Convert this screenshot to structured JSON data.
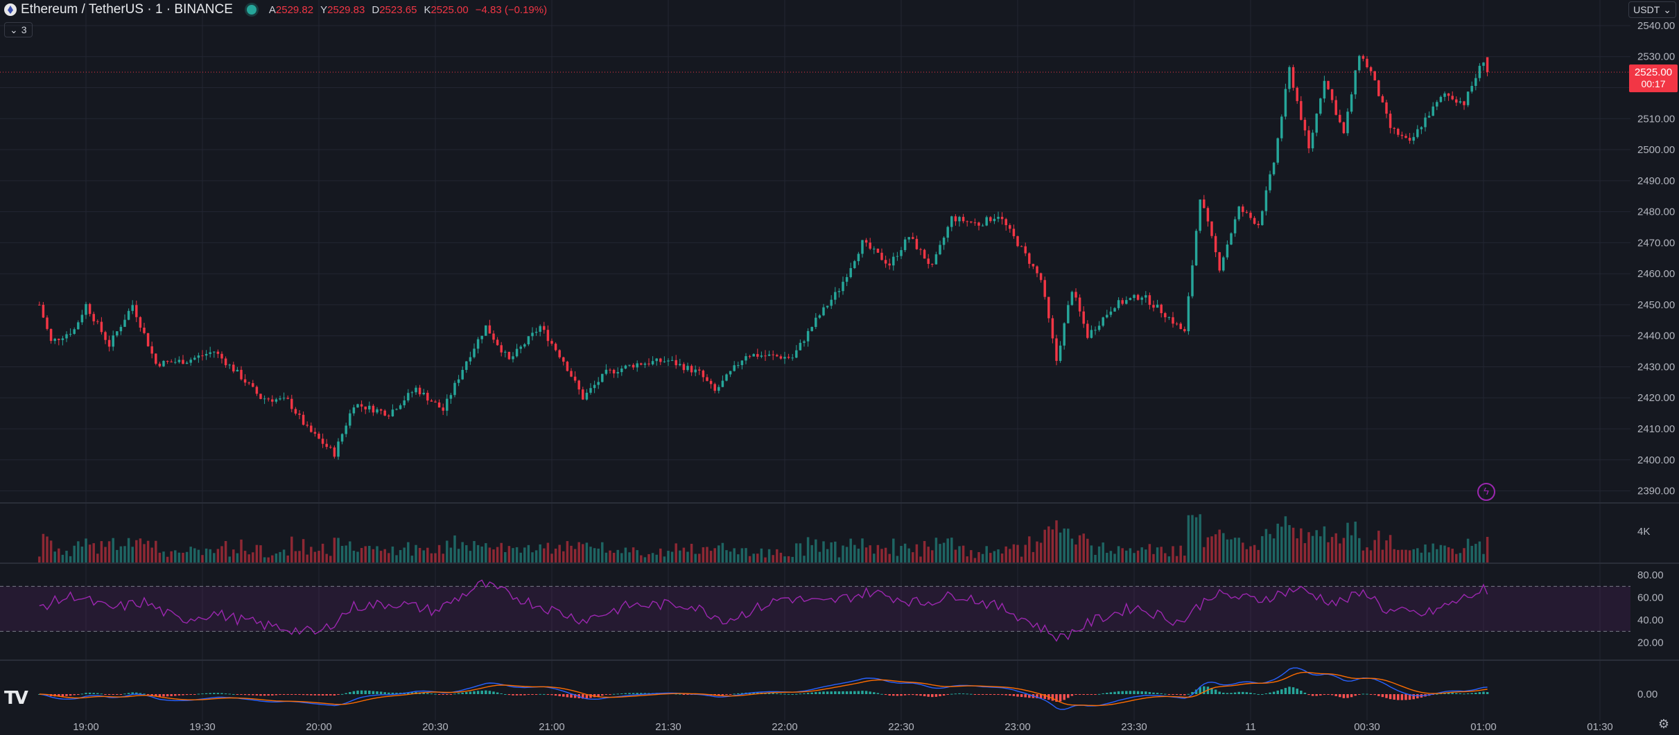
{
  "header": {
    "symbol_title": "Ethereum / TetherUS · 1 · BINANCE",
    "ohlc": [
      {
        "key": "A",
        "value": "2529.82"
      },
      {
        "key": "Y",
        "value": "2529.83"
      },
      {
        "key": "D",
        "value": "2523.65"
      },
      {
        "key": "K",
        "value": "2525.00"
      },
      {
        "key": "",
        "value": "−4.83 (−0.19%)"
      }
    ],
    "collapse_label": "3",
    "currency": "USDT"
  },
  "colors": {
    "background": "#151820",
    "up": "#26a69a",
    "down": "#f23645",
    "rsi": "#9c27b0",
    "macd": "#2962ff",
    "signal": "#ff6d00",
    "grid": "#232632",
    "text": "#b2b5be"
  },
  "price_tag": {
    "price": "2525.00",
    "countdown": "00:17"
  },
  "volume_axis_label": "4K",
  "icons": {
    "logo": "tradingview-logo-icon",
    "settings": "gear-icon",
    "flash": "lightning-icon"
  },
  "chart_data": {
    "type": "candlestick",
    "symbol": "Ethereum / TetherUS · 1 · BINANCE",
    "price_axis": {
      "ticks": [
        "2540.00",
        "2530.00",
        "2520.00",
        "2510.00",
        "2500.00",
        "2490.00",
        "2480.00",
        "2470.00",
        "2460.00",
        "2450.00",
        "2440.00",
        "2430.00",
        "2420.00",
        "2410.00",
        "2400.00",
        "2390.00"
      ],
      "range": [
        2387,
        2542
      ]
    },
    "time_axis": {
      "ticks": [
        "19:00",
        "19:30",
        "20:00",
        "20:30",
        "21:00",
        "21:30",
        "22:00",
        "22:30",
        "23:00",
        "23:30",
        "11",
        "00:30",
        "01:00",
        "01:30"
      ]
    },
    "close_path": [
      {
        "t": "18:48",
        "p": 2450
      },
      {
        "t": "18:51",
        "p": 2438
      },
      {
        "t": "18:57",
        "p": 2442
      },
      {
        "t": "19:00",
        "p": 2450
      },
      {
        "t": "19:06",
        "p": 2437
      },
      {
        "t": "19:12",
        "p": 2450
      },
      {
        "t": "19:18",
        "p": 2431
      },
      {
        "t": "19:26",
        "p": 2432
      },
      {
        "t": "19:33",
        "p": 2435
      },
      {
        "t": "19:39",
        "p": 2428
      },
      {
        "t": "19:45",
        "p": 2420
      },
      {
        "t": "19:52",
        "p": 2419
      },
      {
        "t": "19:57",
        "p": 2410
      },
      {
        "t": "20:04",
        "p": 2402
      },
      {
        "t": "20:09",
        "p": 2418
      },
      {
        "t": "20:18",
        "p": 2415
      },
      {
        "t": "20:25",
        "p": 2423
      },
      {
        "t": "20:32",
        "p": 2416
      },
      {
        "t": "20:38",
        "p": 2432
      },
      {
        "t": "20:43",
        "p": 2443
      },
      {
        "t": "20:49",
        "p": 2432
      },
      {
        "t": "20:57",
        "p": 2443
      },
      {
        "t": "21:03",
        "p": 2432
      },
      {
        "t": "21:08",
        "p": 2420
      },
      {
        "t": "21:14",
        "p": 2428
      },
      {
        "t": "21:22",
        "p": 2431
      },
      {
        "t": "21:30",
        "p": 2432
      },
      {
        "t": "21:38",
        "p": 2428
      },
      {
        "t": "21:42",
        "p": 2422
      },
      {
        "t": "21:50",
        "p": 2434
      },
      {
        "t": "22:02",
        "p": 2433
      },
      {
        "t": "22:08",
        "p": 2445
      },
      {
        "t": "22:14",
        "p": 2455
      },
      {
        "t": "22:20",
        "p": 2470
      },
      {
        "t": "22:27",
        "p": 2463
      },
      {
        "t": "22:32",
        "p": 2472
      },
      {
        "t": "22:38",
        "p": 2462
      },
      {
        "t": "22:43",
        "p": 2478
      },
      {
        "t": "22:50",
        "p": 2476
      },
      {
        "t": "22:55",
        "p": 2479
      },
      {
        "t": "23:01",
        "p": 2468
      },
      {
        "t": "23:06",
        "p": 2458
      },
      {
        "t": "23:10",
        "p": 2432
      },
      {
        "t": "23:14",
        "p": 2455
      },
      {
        "t": "23:18",
        "p": 2440
      },
      {
        "t": "23:25",
        "p": 2450
      },
      {
        "t": "23:32",
        "p": 2453
      },
      {
        "t": "23:38",
        "p": 2447
      },
      {
        "t": "23:43",
        "p": 2441
      },
      {
        "t": "23:47",
        "p": 2485
      },
      {
        "t": "23:52",
        "p": 2462
      },
      {
        "t": "23:57",
        "p": 2481
      },
      {
        "t": "00:02",
        "p": 2476
      },
      {
        "t": "00:06",
        "p": 2496
      },
      {
        "t": "00:10",
        "p": 2526
      },
      {
        "t": "00:15",
        "p": 2500
      },
      {
        "t": "00:19",
        "p": 2523
      },
      {
        "t": "00:24",
        "p": 2505
      },
      {
        "t": "00:28",
        "p": 2531
      },
      {
        "t": "00:31",
        "p": 2525
      },
      {
        "t": "00:36",
        "p": 2507
      },
      {
        "t": "00:41",
        "p": 2502
      },
      {
        "t": "00:45",
        "p": 2510
      },
      {
        "t": "00:50",
        "p": 2518
      },
      {
        "t": "00:55",
        "p": 2515
      },
      {
        "t": "01:00",
        "p": 2529
      },
      {
        "t": "01:01",
        "p": 2525
      }
    ],
    "last_price": 2525.0,
    "volume": {
      "unit_label": "4K"
    },
    "rsi": {
      "axis_ticks": [
        "80.00",
        "60.00",
        "40.00",
        "20.00"
      ],
      "upper_band": 70,
      "lower_band": 30,
      "path": [
        {
          "t": "18:48",
          "v": 52
        },
        {
          "t": "18:57",
          "v": 62
        },
        {
          "t": "19:06",
          "v": 50
        },
        {
          "t": "19:15",
          "v": 56
        },
        {
          "t": "19:24",
          "v": 40
        },
        {
          "t": "19:33",
          "v": 46
        },
        {
          "t": "19:45",
          "v": 36
        },
        {
          "t": "20:00",
          "v": 28
        },
        {
          "t": "20:09",
          "v": 52
        },
        {
          "t": "20:20",
          "v": 55
        },
        {
          "t": "20:30",
          "v": 48
        },
        {
          "t": "20:42",
          "v": 72
        },
        {
          "t": "20:55",
          "v": 55
        },
        {
          "t": "21:08",
          "v": 40
        },
        {
          "t": "21:20",
          "v": 53
        },
        {
          "t": "21:35",
          "v": 54
        },
        {
          "t": "21:45",
          "v": 40
        },
        {
          "t": "22:00",
          "v": 60
        },
        {
          "t": "22:10",
          "v": 55
        },
        {
          "t": "22:22",
          "v": 65
        },
        {
          "t": "22:35",
          "v": 55
        },
        {
          "t": "22:45",
          "v": 63
        },
        {
          "t": "22:58",
          "v": 48
        },
        {
          "t": "23:11",
          "v": 24
        },
        {
          "t": "23:20",
          "v": 40
        },
        {
          "t": "23:30",
          "v": 52
        },
        {
          "t": "23:42",
          "v": 38
        },
        {
          "t": "23:50",
          "v": 63
        },
        {
          "t": "00:02",
          "v": 58
        },
        {
          "t": "00:12",
          "v": 68
        },
        {
          "t": "00:22",
          "v": 55
        },
        {
          "t": "00:30",
          "v": 65
        },
        {
          "t": "00:35",
          "v": 48
        },
        {
          "t": "00:45",
          "v": 45
        },
        {
          "t": "00:52",
          "v": 55
        },
        {
          "t": "01:00",
          "v": 67
        },
        {
          "t": "01:01",
          "v": 60
        }
      ]
    }
  }
}
